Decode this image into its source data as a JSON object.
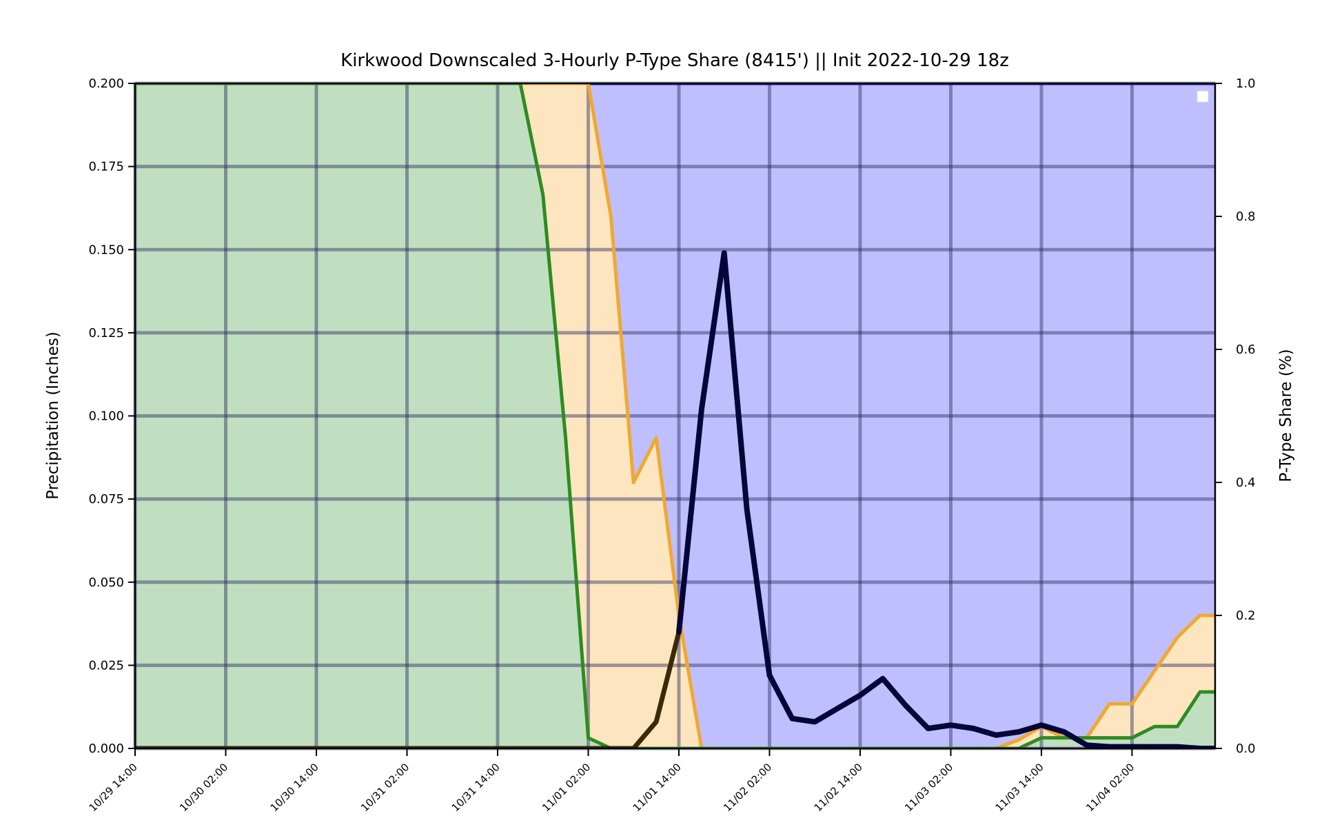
{
  "chart_data": {
    "type": "area",
    "title": "Kirkwood Downscaled 3-Hourly P-Type Share (8415') || Init 2022-10-29 18z",
    "ylabel": "Precipitation (Inches)",
    "y2label": "P-Type Share (%)",
    "ylim": [
      0,
      0.2
    ],
    "y2lim": [
      0,
      1.0
    ],
    "yticks": [
      "0.000",
      "0.025",
      "0.050",
      "0.075",
      "0.100",
      "0.125",
      "0.150",
      "0.175",
      "0.200"
    ],
    "y2ticks": [
      "0.0",
      "0.2",
      "0.4",
      "0.6",
      "0.8",
      "1.0"
    ],
    "xlim": [
      "10/29 14:00",
      "11/04 13:00"
    ],
    "xticks": [
      "10/29 14:00",
      "10/30 02:00",
      "10/30 14:00",
      "10/31 02:00",
      "10/31 14:00",
      "11/01 02:00",
      "11/01 14:00",
      "11/02 02:00",
      "11/02 14:00",
      "11/03 02:00",
      "11/03 14:00",
      "11/04 02:00"
    ],
    "grid": true,
    "legend": {
      "position": "top-right",
      "entries": []
    },
    "x": [
      "10/29 14:00",
      "10/29 17:00",
      "10/29 20:00",
      "10/29 23:00",
      "10/30 02:00",
      "10/30 05:00",
      "10/30 08:00",
      "10/30 11:00",
      "10/30 14:00",
      "10/30 17:00",
      "10/30 20:00",
      "10/30 23:00",
      "10/31 02:00",
      "10/31 05:00",
      "10/31 08:00",
      "10/31 11:00",
      "10/31 14:00",
      "10/31 17:00",
      "10/31 20:00",
      "10/31 23:00",
      "11/01 02:00",
      "11/01 05:00",
      "11/01 08:00",
      "11/01 11:00",
      "11/01 14:00",
      "11/01 17:00",
      "11/01 20:00",
      "11/01 23:00",
      "11/02 02:00",
      "11/02 05:00",
      "11/02 08:00",
      "11/02 11:00",
      "11/02 14:00",
      "11/02 17:00",
      "11/02 20:00",
      "11/02 23:00",
      "11/03 02:00",
      "11/03 05:00",
      "11/03 08:00",
      "11/03 11:00",
      "11/03 14:00",
      "11/03 17:00",
      "11/03 20:00",
      "11/03 23:00",
      "11/04 02:00",
      "11/04 05:00",
      "11/04 08:00",
      "11/04 11:00"
    ],
    "series": [
      {
        "axis": "right",
        "role": "rain-share",
        "line_color": "#2e8b22",
        "fill_color": "#c0dfc0",
        "values": [
          1,
          1,
          1,
          1,
          1,
          1,
          1,
          1,
          1,
          1,
          1,
          1,
          1,
          1,
          1,
          1,
          1,
          1,
          0.833,
          0.467,
          0.016,
          0,
          0,
          0,
          0,
          0,
          0,
          0,
          0,
          0,
          0,
          0,
          0,
          0,
          0,
          0,
          0,
          0,
          0,
          0,
          0.016,
          0.016,
          0.016,
          0.016,
          0.016,
          0.033,
          0.033,
          0.085
        ]
      },
      {
        "axis": "right",
        "role": "mixed-share",
        "line_color": "#f0a830",
        "fill_color": "#fde5c0",
        "values": [
          1,
          1,
          1,
          1,
          1,
          1,
          1,
          1,
          1,
          1,
          1,
          1,
          1,
          1,
          1,
          1,
          1,
          1,
          1,
          1,
          1,
          0.8,
          0.4,
          0.467,
          0.2,
          0,
          0,
          0,
          0,
          0,
          0,
          0,
          0,
          0,
          0,
          0,
          0,
          0,
          0,
          0.013,
          0.033,
          0.016,
          0.016,
          0.067,
          0.067,
          0.117,
          0.167,
          0.2
        ]
      },
      {
        "axis": "right",
        "role": "snow-share",
        "line_color": "#1a1aa0",
        "fill_color": "#bfbfff",
        "values": [
          1,
          1,
          1,
          1,
          1,
          1,
          1,
          1,
          1,
          1,
          1,
          1,
          1,
          1,
          1,
          1,
          1,
          1,
          1,
          1,
          1,
          1,
          1,
          1,
          1,
          1,
          1,
          1,
          1,
          1,
          1,
          1,
          1,
          1,
          1,
          1,
          1,
          1,
          1,
          1,
          1,
          1,
          1,
          1,
          1,
          1,
          1,
          1
        ]
      },
      {
        "axis": "left",
        "role": "precipitation",
        "line_color": "#3a2a08",
        "line_color_snow": "#05053a",
        "values": [
          0,
          0,
          0,
          0,
          0,
          0,
          0,
          0,
          0,
          0,
          0,
          0,
          0,
          0,
          0,
          0,
          0,
          0,
          0,
          0,
          0,
          0,
          0,
          0.008,
          0.035,
          0.102,
          0.149,
          0.072,
          0.022,
          0.009,
          0.008,
          0.012,
          0.016,
          0.021,
          0.013,
          0.006,
          0.007,
          0.006,
          0.004,
          0.005,
          0.007,
          0.005,
          0.001,
          0.0005,
          0.0005,
          0.0005,
          0.0005,
          0
        ]
      }
    ]
  }
}
